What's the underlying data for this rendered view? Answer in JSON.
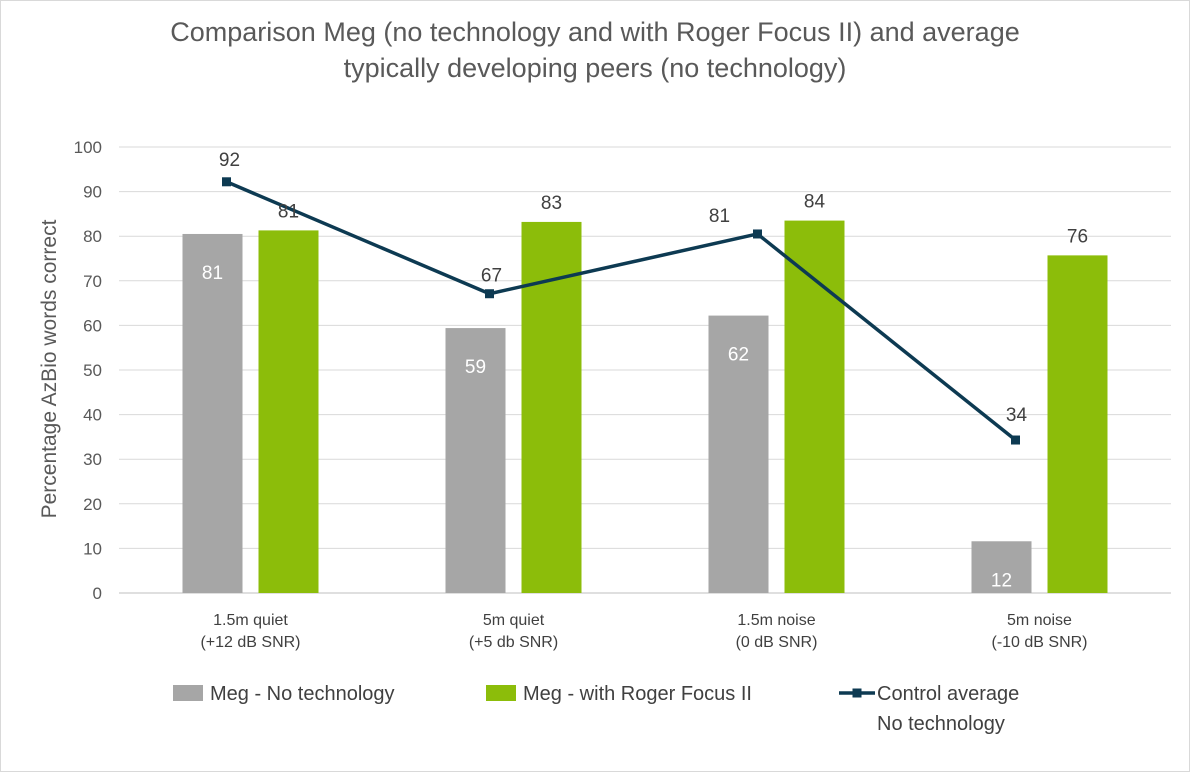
{
  "chart_data": {
    "type": "bar",
    "title_lines": [
      "Comparison Meg (no technology and with Roger Focus II) and average",
      "typically developing peers (no technology)"
    ],
    "ylabel": "Percentage AzBio words correct",
    "xlabel": "",
    "ylim": [
      0,
      100
    ],
    "yticks": [
      "0",
      "10",
      "20",
      "30",
      "40",
      "50",
      "60",
      "70",
      "80",
      "90",
      "100"
    ],
    "grid": true,
    "legend_position": "bottom",
    "categories": [
      [
        "1.5m quiet",
        "(+12 dB SNR)"
      ],
      [
        "5m quiet",
        "(+5 db SNR)"
      ],
      [
        "1.5m noise",
        "(0 dB SNR)"
      ],
      [
        "5m noise",
        "(-10 dB SNR)"
      ]
    ],
    "series": [
      {
        "name": "Meg - No technology",
        "kind": "bar",
        "color": "#a6a6a6",
        "values": [
          80.5,
          59.4,
          62.2,
          11.6
        ],
        "labels": [
          "81",
          "59",
          "62",
          "12"
        ]
      },
      {
        "name": "Meg - with Roger Focus II",
        "kind": "bar",
        "color": "#8cbd0a",
        "values": [
          81.3,
          83.2,
          83.5,
          75.7
        ],
        "labels": [
          "81",
          "83",
          "84",
          "76"
        ]
      },
      {
        "name": "Control average No technology",
        "legend_lines": [
          "Control average",
          "No technology"
        ],
        "kind": "line",
        "color": "#0d3a52",
        "values": [
          92.2,
          67.1,
          80.5,
          34.3
        ],
        "labels": [
          "92",
          "67",
          "81",
          "34"
        ]
      }
    ]
  }
}
